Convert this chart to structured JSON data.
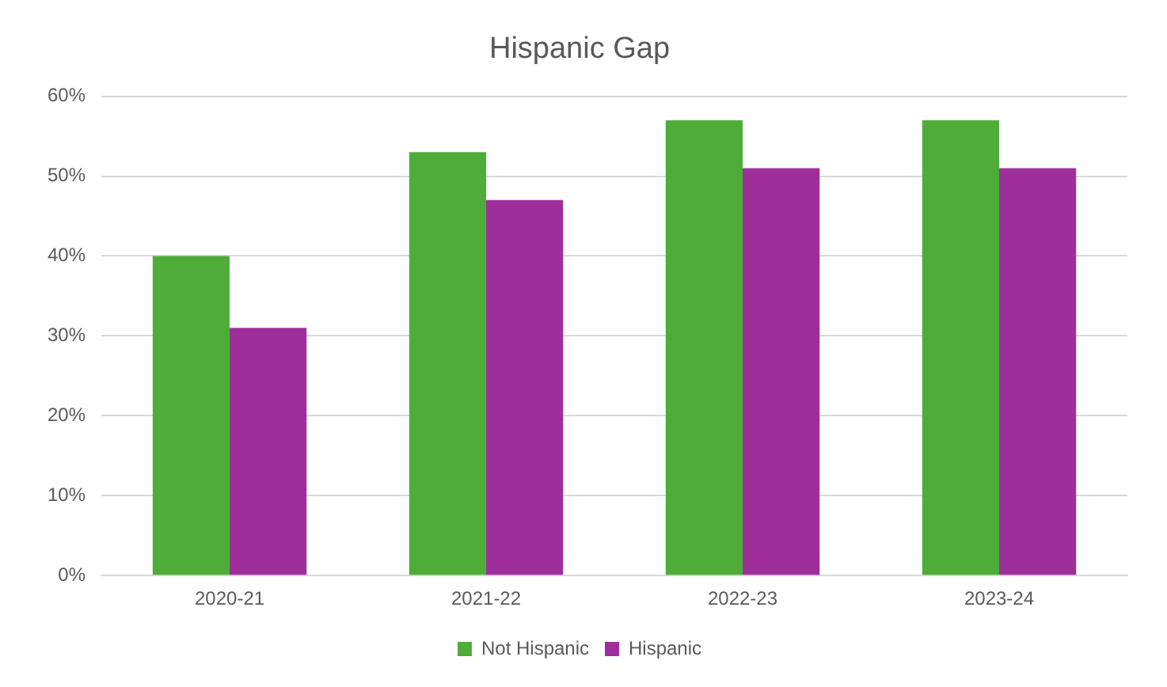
{
  "chart_data": {
    "type": "bar",
    "title": "Hispanic Gap",
    "categories": [
      "2020-21",
      "2021-22",
      "2022-23",
      "2023-24"
    ],
    "series": [
      {
        "name": "Not Hispanic",
        "color": "#4ead38",
        "values": [
          40,
          53,
          57,
          57
        ]
      },
      {
        "name": "Hispanic",
        "color": "#9e2f9a",
        "values": [
          31,
          47,
          51,
          51
        ]
      }
    ],
    "ylim": [
      0,
      60
    ],
    "yticks": [
      {
        "value": 0,
        "label": "0%"
      },
      {
        "value": 10,
        "label": "10%"
      },
      {
        "value": 20,
        "label": "20%"
      },
      {
        "value": 30,
        "label": "30%"
      },
      {
        "value": 40,
        "label": "40%"
      },
      {
        "value": 50,
        "label": "50%"
      },
      {
        "value": 60,
        "label": "60%"
      }
    ],
    "grid": "y",
    "legend": "bottom"
  }
}
